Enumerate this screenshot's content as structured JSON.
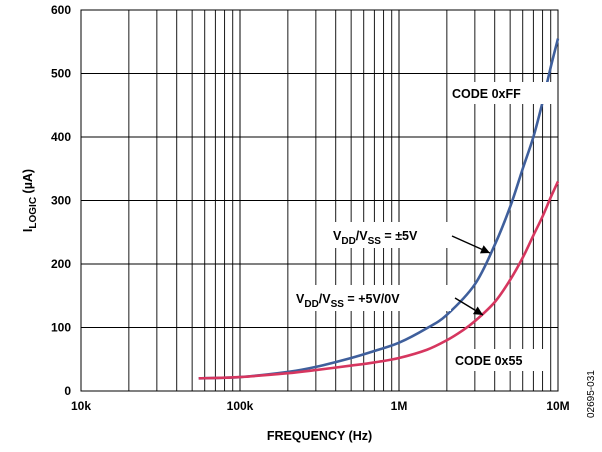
{
  "chart_data": {
    "type": "line",
    "x_scale": "log",
    "xlabel": "FREQUENCY (Hz)",
    "ylabel": {
      "main": "I",
      "sub": "LOGIC",
      "unit": " (µA)"
    },
    "xlim": [
      10000,
      10000000
    ],
    "ylim": [
      0,
      600
    ],
    "x_ticks": [
      {
        "value": 10000,
        "label": "10k"
      },
      {
        "value": 100000,
        "label": "100k"
      },
      {
        "value": 1000000,
        "label": "1M"
      },
      {
        "value": 10000000,
        "label": "10M"
      }
    ],
    "y_ticks": [
      {
        "value": 0,
        "label": "0"
      },
      {
        "value": 100,
        "label": "100"
      },
      {
        "value": 200,
        "label": "200"
      },
      {
        "value": 300,
        "label": "300"
      },
      {
        "value": 400,
        "label": "400"
      },
      {
        "value": 500,
        "label": "500"
      },
      {
        "value": 600,
        "label": "600"
      }
    ],
    "grid": true,
    "series": [
      {
        "color": "#3f5f9c",
        "points": [
          [
            55000,
            20
          ],
          [
            100000,
            22
          ],
          [
            200000,
            30
          ],
          [
            300000,
            38
          ],
          [
            500000,
            52
          ],
          [
            700000,
            63
          ],
          [
            1000000,
            76
          ],
          [
            1500000,
            99
          ],
          [
            2000000,
            120
          ],
          [
            3000000,
            168
          ],
          [
            4000000,
            230
          ],
          [
            5000000,
            290
          ],
          [
            6000000,
            350
          ],
          [
            7000000,
            400
          ],
          [
            8000000,
            455
          ],
          [
            9000000,
            510
          ],
          [
            10000000,
            555
          ]
        ]
      },
      {
        "color": "#d6365f",
        "points": [
          [
            55000,
            20
          ],
          [
            100000,
            22
          ],
          [
            200000,
            28
          ],
          [
            300000,
            33
          ],
          [
            500000,
            40
          ],
          [
            700000,
            45
          ],
          [
            1000000,
            52
          ],
          [
            1500000,
            65
          ],
          [
            2000000,
            80
          ],
          [
            2500000,
            95
          ],
          [
            3000000,
            110
          ],
          [
            4000000,
            140
          ],
          [
            5000000,
            175
          ],
          [
            6000000,
            210
          ],
          [
            7000000,
            245
          ],
          [
            8000000,
            275
          ],
          [
            9000000,
            305
          ],
          [
            10000000,
            330
          ]
        ]
      }
    ],
    "annotations": [
      {
        "id": "code-ff",
        "parts": [
          [
            "CODE 0xFF",
            ""
          ]
        ]
      },
      {
        "id": "vdd-5v",
        "parts": [
          [
            "V",
            ""
          ],
          [
            "DD",
            "sub"
          ],
          [
            "/V",
            ""
          ],
          [
            "SS",
            "sub"
          ],
          [
            " = ±5V",
            ""
          ]
        ]
      },
      {
        "id": "vdd-5v0v",
        "parts": [
          [
            "V",
            ""
          ],
          [
            "DD",
            "sub"
          ],
          [
            "/V",
            ""
          ],
          [
            "SS",
            "sub"
          ],
          [
            " = +5V/0V",
            ""
          ]
        ]
      },
      {
        "id": "code-55",
        "parts": [
          [
            "CODE 0x55",
            ""
          ]
        ]
      }
    ],
    "figure_id": "02695-031"
  }
}
